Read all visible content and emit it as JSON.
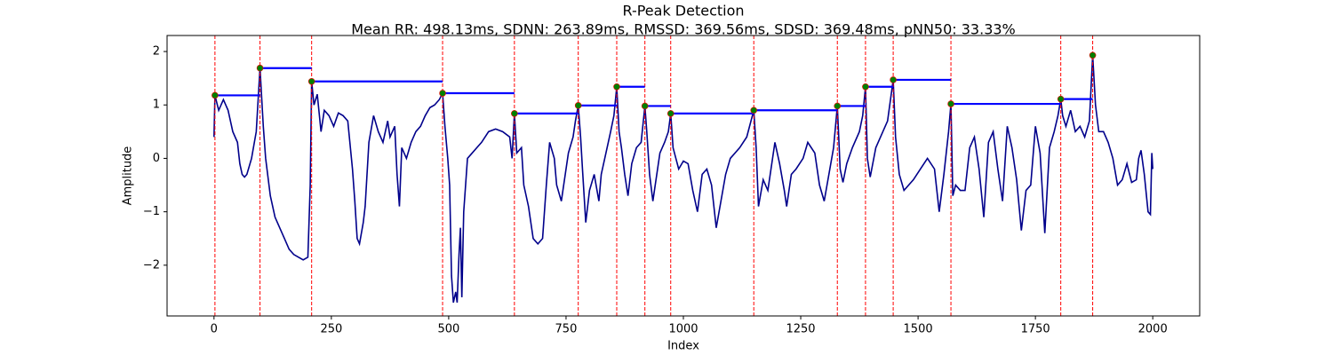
{
  "chart_data": {
    "type": "line",
    "title": "R-Peak Detection",
    "subtitle": "Mean RR: 498.13ms, SDNN: 263.89ms, RMSSD: 369.56ms, SDSD: 369.48ms, pNN50: 33.33%",
    "x_label": "Index",
    "y_label": "Amplitude",
    "xlim": [
      -100,
      2100
    ],
    "ylim": [
      -2.95,
      2.3
    ],
    "xticks": [
      0,
      250,
      500,
      750,
      1000,
      1250,
      1500,
      1750,
      2000
    ],
    "yticks": [
      {
        "value": -2,
        "label": "−2"
      },
      {
        "value": -1,
        "label": "−1"
      },
      0,
      1,
      2
    ],
    "color": "#00008b",
    "x": [
      0,
      2,
      10,
      20,
      30,
      40,
      50,
      55,
      60,
      65,
      70,
      80,
      90,
      98,
      105,
      110,
      120,
      130,
      140,
      150,
      160,
      170,
      180,
      190,
      200,
      205,
      208,
      213,
      220,
      228,
      235,
      245,
      255,
      265,
      275,
      285,
      295,
      300,
      305,
      310,
      318,
      322,
      330,
      340,
      350,
      360,
      370,
      375,
      385,
      390,
      395,
      400,
      410,
      420,
      430,
      440,
      450,
      460,
      470,
      480,
      487,
      492,
      498,
      502,
      506,
      510,
      515,
      518,
      522,
      525,
      528,
      532,
      540,
      550,
      560,
      570,
      585,
      600,
      615,
      630,
      635,
      640,
      645,
      655,
      660,
      670,
      680,
      690,
      700,
      708,
      715,
      725,
      730,
      740,
      745,
      755,
      765,
      770,
      776,
      781,
      785,
      792,
      800,
      810,
      820,
      825,
      835,
      845,
      852,
      858,
      863,
      868,
      875,
      882,
      890,
      900,
      910,
      918,
      922,
      928,
      935,
      940,
      950,
      960,
      968,
      973,
      978,
      990,
      1000,
      1010,
      1020,
      1030,
      1040,
      1050,
      1060,
      1070,
      1080,
      1090,
      1100,
      1120,
      1135,
      1150,
      1155,
      1160,
      1170,
      1180,
      1195,
      1205,
      1215,
      1220,
      1230,
      1240,
      1255,
      1265,
      1280,
      1290,
      1300,
      1310,
      1320,
      1328,
      1334,
      1340,
      1348,
      1360,
      1375,
      1382,
      1388,
      1392,
      1398,
      1410,
      1420,
      1435,
      1447,
      1452,
      1460,
      1470,
      1480,
      1490,
      1505,
      1520,
      1535,
      1545,
      1555,
      1565,
      1570,
      1574,
      1580,
      1590,
      1600,
      1610,
      1620,
      1630,
      1640,
      1650,
      1660,
      1670,
      1680,
      1690,
      1700,
      1710,
      1720,
      1730,
      1740,
      1750,
      1760,
      1770,
      1780,
      1790,
      1798,
      1804,
      1808,
      1815,
      1825,
      1835,
      1845,
      1855,
      1865,
      1872,
      1878,
      1885,
      1895,
      1905,
      1915,
      1925,
      1935,
      1945,
      1955,
      1965,
      1970,
      1975,
      1982,
      1990,
      1995,
      1998,
      2000
    ],
    "values": [
      0.4,
      1.18,
      0.9,
      1.1,
      0.9,
      0.5,
      0.3,
      -0.1,
      -0.3,
      -0.35,
      -0.3,
      0.0,
      0.5,
      1.69,
      0.6,
      0.0,
      -0.7,
      -1.1,
      -1.3,
      -1.5,
      -1.7,
      -1.8,
      -1.85,
      -1.9,
      -1.85,
      -0.5,
      1.44,
      1.0,
      1.2,
      0.5,
      0.9,
      0.8,
      0.6,
      0.85,
      0.8,
      0.7,
      -0.2,
      -0.8,
      -1.5,
      -1.6,
      -1.2,
      -0.9,
      0.3,
      0.8,
      0.5,
      0.3,
      0.7,
      0.4,
      0.6,
      -0.3,
      -0.9,
      0.2,
      0.0,
      0.3,
      0.5,
      0.6,
      0.8,
      0.95,
      1.0,
      1.1,
      1.22,
      0.6,
      0.0,
      -0.5,
      -2.2,
      -2.7,
      -2.5,
      -2.7,
      -1.8,
      -1.3,
      -2.6,
      -1.0,
      0.0,
      0.1,
      0.2,
      0.3,
      0.5,
      0.55,
      0.5,
      0.4,
      0.0,
      0.84,
      0.1,
      0.2,
      -0.5,
      -0.9,
      -1.5,
      -1.6,
      -1.5,
      -0.5,
      0.3,
      0.0,
      -0.5,
      -0.8,
      -0.5,
      0.1,
      0.4,
      0.7,
      0.99,
      0.4,
      -0.2,
      -1.2,
      -0.6,
      -0.3,
      -0.8,
      -0.3,
      0.1,
      0.5,
      0.8,
      1.34,
      0.5,
      0.2,
      -0.3,
      -0.7,
      -0.1,
      0.2,
      0.3,
      0.98,
      0.5,
      -0.3,
      -0.8,
      -0.5,
      0.1,
      0.3,
      0.5,
      0.84,
      0.2,
      -0.2,
      -0.05,
      -0.1,
      -0.6,
      -1.0,
      -0.3,
      -0.2,
      -0.5,
      -1.3,
      -0.8,
      -0.3,
      0.0,
      0.2,
      0.4,
      0.9,
      0.2,
      -0.9,
      -0.4,
      -0.6,
      0.3,
      -0.1,
      -0.6,
      -0.9,
      -0.3,
      -0.2,
      0.0,
      0.3,
      0.1,
      -0.5,
      -0.8,
      -0.3,
      0.2,
      0.98,
      -0.2,
      -0.45,
      -0.1,
      0.2,
      0.5,
      0.8,
      1.34,
      0.0,
      -0.35,
      0.2,
      0.4,
      0.7,
      1.47,
      0.4,
      -0.3,
      -0.6,
      -0.5,
      -0.4,
      -0.2,
      0.0,
      -0.2,
      -1.0,
      -0.3,
      0.5,
      1.02,
      -0.7,
      -0.5,
      -0.6,
      -0.6,
      0.2,
      0.4,
      -0.2,
      -1.1,
      0.3,
      0.5,
      -0.2,
      -0.8,
      0.6,
      0.2,
      -0.4,
      -1.35,
      -0.6,
      -0.5,
      0.6,
      0.1,
      -1.4,
      0.2,
      0.5,
      0.8,
      1.11,
      0.8,
      0.6,
      0.9,
      0.5,
      0.6,
      0.4,
      0.7,
      1.93,
      1.0,
      0.5,
      0.5,
      0.3,
      0.0,
      -0.5,
      -0.4,
      -0.1,
      -0.45,
      -0.4,
      0.0,
      0.15,
      -0.3,
      -1.0,
      -1.05,
      0.1,
      -0.2
    ],
    "peak_x": [
      2,
      98,
      208,
      487,
      640,
      776,
      858,
      918,
      973,
      1150,
      1328,
      1388,
      1447,
      1570,
      1804,
      1872
    ],
    "peak_values": [
      1.18,
      1.69,
      1.44,
      1.22,
      0.84,
      0.99,
      1.34,
      0.98,
      0.84,
      0.9,
      0.98,
      1.34,
      1.47,
      1.02,
      1.11,
      1.93
    ],
    "peak_color": "#008000",
    "peak_edge_color": "#ff0000",
    "peak_line_color": "#ff0000",
    "interval_color": "#0000ff"
  }
}
